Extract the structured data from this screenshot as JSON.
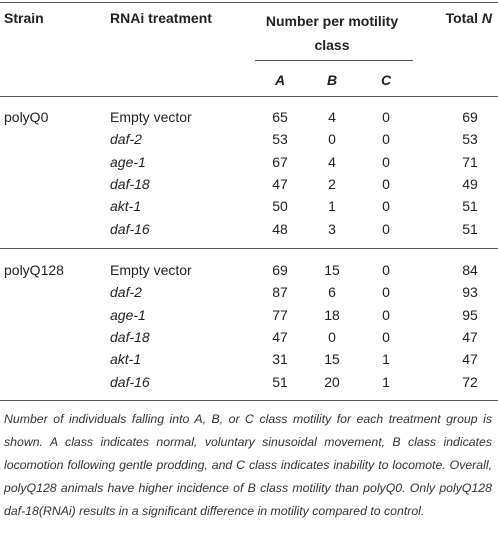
{
  "table": {
    "headers": {
      "strain": "Strain",
      "treatment": "RNAi treatment",
      "number": "Number per motility class",
      "classes": [
        "A",
        "B",
        "C"
      ],
      "total": {
        "text": "Total",
        "symbol": "N"
      }
    },
    "groups": [
      {
        "strain": "polyQ0",
        "rows": [
          [
            "Empty vector",
            65,
            4,
            0,
            69
          ],
          [
            "daf-2",
            53,
            0,
            0,
            53
          ],
          [
            "age-1",
            67,
            4,
            0,
            71
          ],
          [
            "daf-18",
            47,
            2,
            0,
            49
          ],
          [
            "akt-1",
            50,
            1,
            0,
            51
          ],
          [
            "daf-16",
            48,
            3,
            0,
            51
          ]
        ]
      },
      {
        "strain": "polyQ128",
        "rows": [
          [
            "Empty vector",
            69,
            15,
            0,
            84
          ],
          [
            "daf-2",
            87,
            6,
            0,
            93
          ],
          [
            "age-1",
            77,
            18,
            0,
            95
          ],
          [
            "daf-18",
            47,
            0,
            0,
            47
          ],
          [
            "akt-1",
            31,
            15,
            1,
            47
          ],
          [
            "daf-16",
            51,
            20,
            1,
            72
          ]
        ]
      }
    ]
  },
  "caption": "Number of individuals falling into A, B, or C class motility for each treatment group is shown. A class indicates normal, voluntary sinusoidal movement, B class indicates locomotion following gentle prodding, and C class indicates inability to locomote. Overall, polyQ128 animals have higher incidence of B class motility than polyQ0. Only polyQ128 daf-18(RNAi) results in a significant difference in motility compared to control."
}
